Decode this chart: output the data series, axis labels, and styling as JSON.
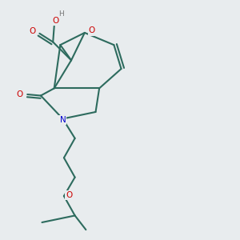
{
  "bg_color": "#e8ecee",
  "bond_color": "#2d6b5e",
  "O_color": "#cc0000",
  "N_color": "#0000cc",
  "H_color": "#777777",
  "lw": 1.5,
  "dbo": 0.012,
  "figsize": [
    3.0,
    3.0
  ],
  "dpi": 100,
  "xlim": [
    0.1,
    0.9
  ],
  "ylim": [
    0.02,
    1.0
  ]
}
